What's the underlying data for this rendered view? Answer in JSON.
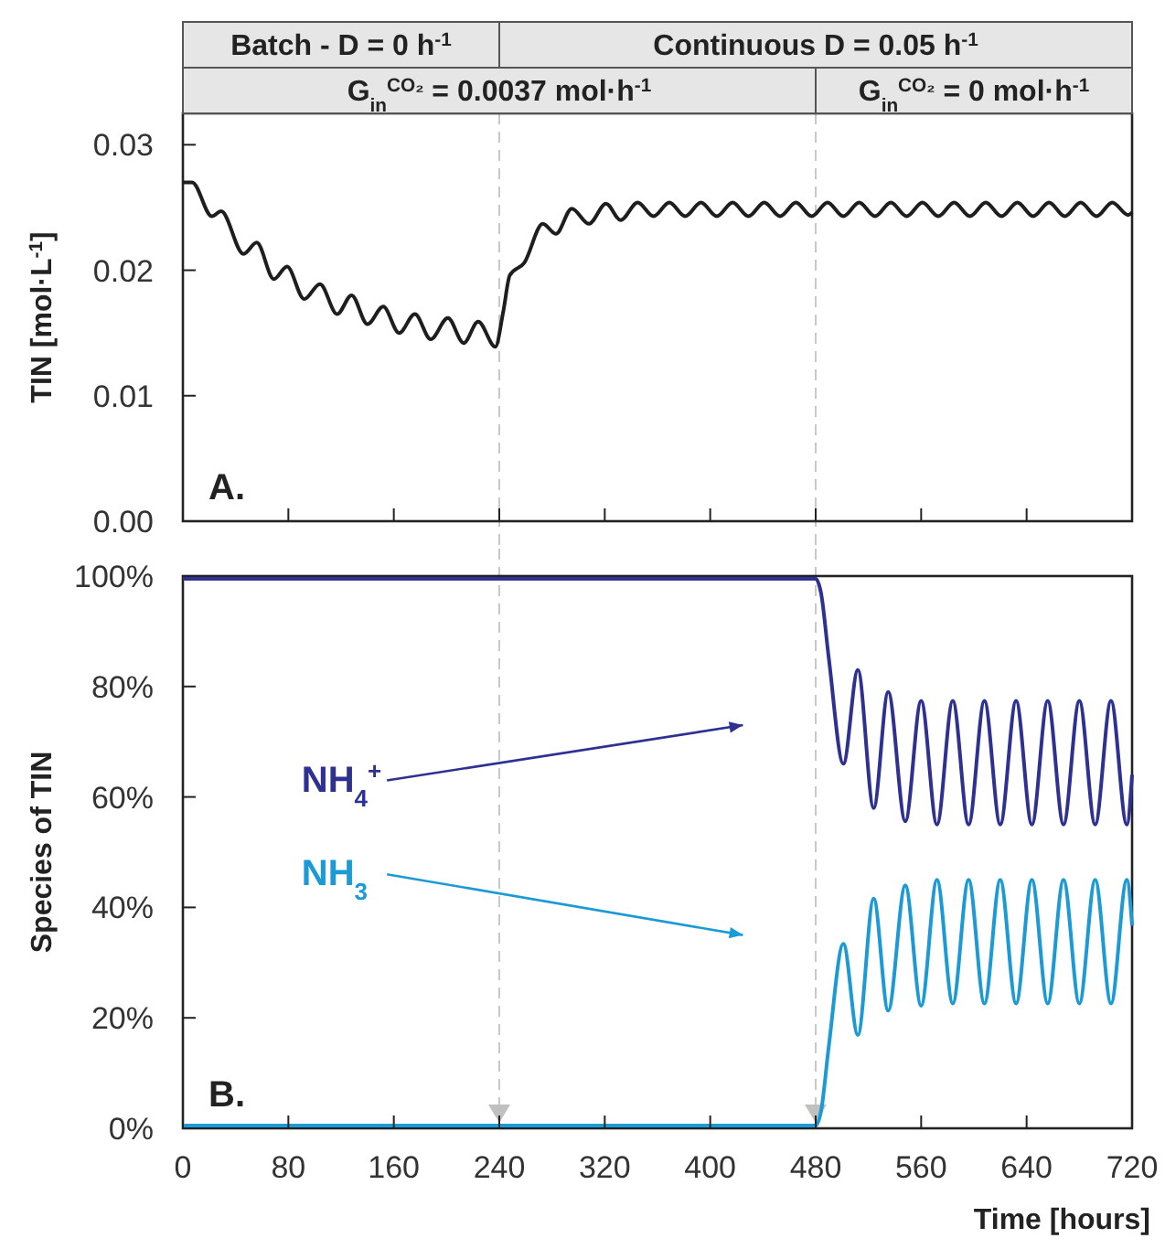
{
  "chart_data": [
    {
      "type": "line",
      "ylabel": "TIN [mol·L$^{-1}$]",
      "annotations": [
        "Batch - D = 0 h$^{-1}$",
        "Continuous D = 0.05 h$^{-1}$",
        "G$_{in}$$^{CO₂}$ = 0.0037 mol·h$^{-1}$",
        "G$_{in}$$^{CO₂}$ = 0 mol·h$^{-1}$",
        "A."
      ],
      "xlim": [
        0,
        720
      ],
      "xticks": [
        0,
        80,
        160,
        240,
        320,
        400,
        480,
        560,
        640,
        720
      ],
      "ylim": [
        0,
        0.0325
      ],
      "yticks": [
        {
          "value": 0,
          "label": "0.00"
        },
        0.01,
        0.02,
        0.03
      ],
      "tick_labels": "y",
      "grid": false,
      "legend": false,
      "ref_lines": [
        {
          "axis": "x",
          "value": 240,
          "color": "#c8c8c8",
          "line_style": "dashed"
        },
        {
          "axis": "x",
          "value": 480,
          "color": "#c8c8c8",
          "line_style": "dashed"
        }
      ],
      "series": [
        {
          "color": "#1e1e1e",
          "x": [
            0,
            7,
            22,
            29,
            46,
            56,
            69,
            79,
            92,
            104,
            117,
            128,
            140,
            152,
            164,
            176,
            188,
            201,
            213,
            224,
            237,
            243,
            248,
            259,
            273,
            283,
            295,
            308,
            321,
            332,
            345,
            357,
            369,
            381,
            393,
            405,
            417,
            429,
            441,
            453,
            465,
            477,
            489,
            501,
            513,
            525,
            537,
            549,
            561,
            573,
            585,
            597,
            609,
            621,
            633,
            645,
            657,
            669,
            681,
            693,
            705,
            717,
            720
          ],
          "values": [
            0.027,
            0.027,
            0.0243,
            0.0247,
            0.0213,
            0.0222,
            0.0193,
            0.0203,
            0.0177,
            0.0189,
            0.0165,
            0.018,
            0.0157,
            0.0171,
            0.015,
            0.0165,
            0.0145,
            0.0162,
            0.0142,
            0.0159,
            0.0139,
            0.0167,
            0.0196,
            0.0206,
            0.0237,
            0.0229,
            0.0249,
            0.0237,
            0.0253,
            0.024,
            0.0254,
            0.0243,
            0.0254,
            0.0243,
            0.0254,
            0.0243,
            0.0254,
            0.0243,
            0.0254,
            0.0243,
            0.0254,
            0.0243,
            0.0254,
            0.0243,
            0.0254,
            0.0243,
            0.0254,
            0.0243,
            0.0254,
            0.0243,
            0.0254,
            0.0243,
            0.0254,
            0.0243,
            0.0254,
            0.0243,
            0.0254,
            0.0243,
            0.0254,
            0.0243,
            0.0254,
            0.0244,
            0.0246
          ]
        }
      ]
    },
    {
      "type": "line",
      "xlabel": "Time [hours]",
      "ylabel": "Species of TIN",
      "annotations": [
        "B."
      ],
      "xlim": [
        0,
        720
      ],
      "xticks": [
        0,
        80,
        160,
        240,
        320,
        400,
        480,
        560,
        640,
        720
      ],
      "ylim": [
        0,
        100
      ],
      "yticks": [
        {
          "value": 0,
          "label": "0%"
        },
        {
          "value": 20,
          "label": "20%"
        },
        {
          "value": 40,
          "label": "40%"
        },
        {
          "value": 60,
          "label": "60%"
        },
        {
          "value": 80,
          "label": "80%"
        },
        {
          "value": 100,
          "label": "100%"
        }
      ],
      "grid": false,
      "legend": false,
      "ref_lines": [
        {
          "axis": "x",
          "value": 240,
          "color": "#c8c8c8",
          "line_style": "dashed"
        },
        {
          "axis": "x",
          "value": 480,
          "color": "#c8c8c8",
          "line_style": "dashed"
        }
      ],
      "x": [
        0,
        120,
        240,
        360,
        480,
        484,
        490,
        501,
        512,
        524,
        535,
        548,
        560,
        572,
        584,
        596,
        608,
        620,
        632,
        644,
        656,
        668,
        680,
        692,
        704,
        716,
        720
      ],
      "series": [
        {
          "name": "NH$_{4}$$^{+}$",
          "color": "#2e3192",
          "values": [
            99.5,
            99.5,
            99.5,
            99.5,
            99.5,
            97,
            85,
            66,
            83,
            58,
            79,
            55.6,
            77.4,
            55,
            77.4,
            55,
            77.4,
            55,
            77.4,
            55,
            77.4,
            55,
            77.4,
            55,
            77.4,
            55,
            64
          ]
        },
        {
          "name": "NH$_{3}$",
          "color": "#1b9ad6",
          "values": [
            0.5,
            0.5,
            0.5,
            0.5,
            0.5,
            3,
            15,
            33.4,
            16.9,
            41.6,
            21.3,
            44,
            22.2,
            45,
            22.6,
            45,
            22.6,
            45,
            22.6,
            45,
            22.6,
            45,
            22.6,
            45,
            22.6,
            45,
            36.7
          ]
        }
      ]
    }
  ]
}
